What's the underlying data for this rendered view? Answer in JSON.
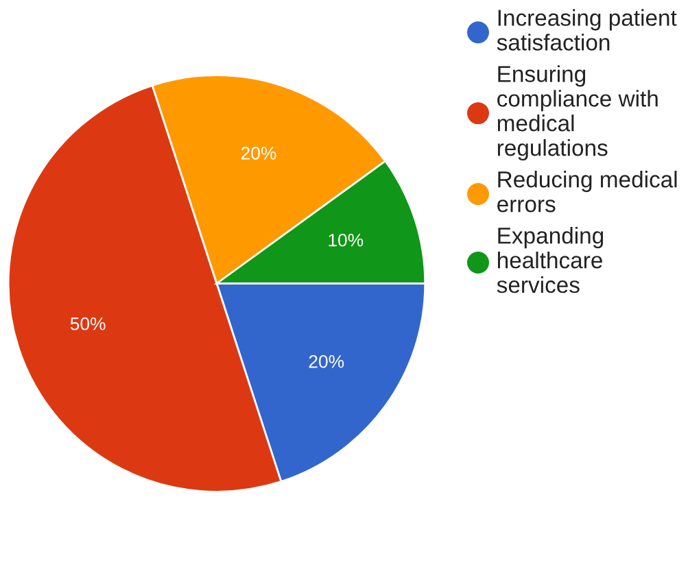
{
  "chart_data": {
    "type": "pie",
    "categories": [
      "Increasing patient\nsatisfaction",
      "Ensuring\ncompliance with\nmedical\nregulations",
      "Reducing medical\nerrors",
      "Expanding\nhealthcare\nservices"
    ],
    "values": [
      20,
      50,
      20,
      10
    ],
    "colors": [
      "#3366cc",
      "#dc3912",
      "#ff9900",
      "#109618"
    ],
    "value_labels": [
      "20%",
      "50%",
      "20%",
      "10%"
    ],
    "legend": "right"
  }
}
